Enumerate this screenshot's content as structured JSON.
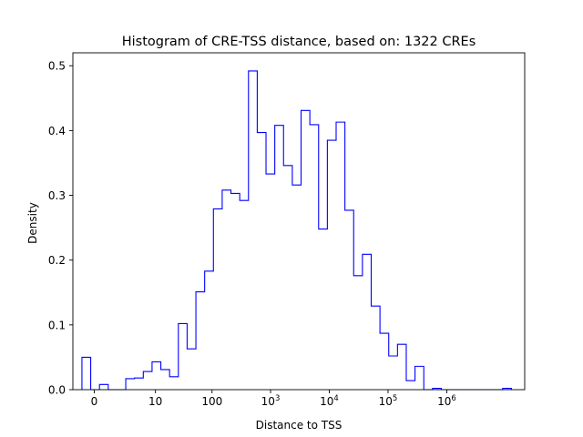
{
  "chart_data": {
    "type": "histogram",
    "title": "Histogram of CRE-TSS distance, based on: 1322 CREs",
    "xlabel": "Distance to TSS",
    "ylabel": "Density",
    "x_scale": "symlog",
    "xticks": [
      {
        "value": 0,
        "label": "0"
      },
      {
        "value": 10,
        "label": "10"
      },
      {
        "value": 100,
        "label": "100"
      },
      {
        "value": 1000,
        "base": "10",
        "exp": "3"
      },
      {
        "value": 10000,
        "base": "10",
        "exp": "4"
      },
      {
        "value": 100000,
        "base": "10",
        "exp": "5"
      },
      {
        "value": 1000000,
        "base": "10",
        "exp": "6"
      }
    ],
    "yticks": [
      "0.0",
      "0.1",
      "0.2",
      "0.3",
      "0.4",
      "0.5"
    ],
    "ylim": [
      0,
      0.52
    ],
    "grid": false,
    "legend": "none",
    "color": "#0000ff",
    "bins_log_range": [
      -0.21,
      7.1
    ],
    "densities": [
      0.05,
      0.0,
      0.008,
      0.0,
      0.0,
      0.017,
      0.018,
      0.028,
      0.043,
      0.031,
      0.02,
      0.102,
      0.063,
      0.151,
      0.183,
      0.279,
      0.308,
      0.303,
      0.292,
      0.492,
      0.397,
      0.333,
      0.408,
      0.346,
      0.316,
      0.431,
      0.409,
      0.248,
      0.385,
      0.413,
      0.277,
      0.176,
      0.209,
      0.129,
      0.087,
      0.052,
      0.07,
      0.014,
      0.036,
      0.0,
      0.002,
      0.0,
      0.0,
      0.0,
      0.0,
      0.0,
      0.0,
      0.0,
      0.002
    ]
  }
}
